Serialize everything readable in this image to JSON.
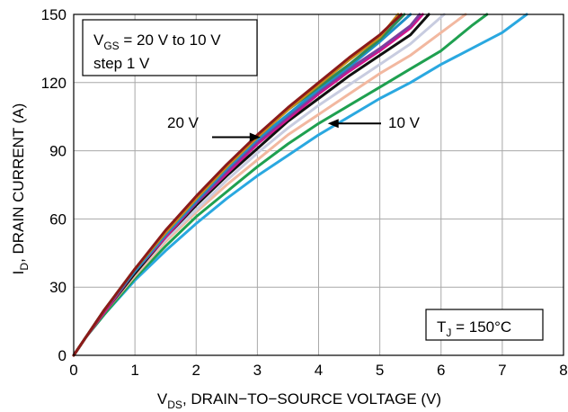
{
  "chart_data": {
    "type": "line",
    "title": "",
    "xlabel": {
      "main": "V",
      "sub": "DS",
      "rest": ", DRAIN−TO−SOURCE VOLTAGE (V)"
    },
    "ylabel": {
      "main": "I",
      "sub": "D",
      "rest": ", DRAIN CURRENT (A)"
    },
    "xlim": [
      0,
      8
    ],
    "ylim": [
      0,
      150
    ],
    "x_ticks": [
      0,
      1,
      2,
      3,
      4,
      5,
      6,
      7,
      8
    ],
    "y_ticks": [
      0,
      30,
      60,
      90,
      120,
      150
    ],
    "grid": true,
    "legend_box": {
      "line1_main": "V",
      "line1_sub": "GS",
      "line1_rest": " = 20 V to 10 V",
      "line2": "step 1 V"
    },
    "temperature_box": {
      "main": "T",
      "sub": "J",
      "rest": " = 150°C"
    },
    "annotations": {
      "left_label": "20 V",
      "right_label": "10 V",
      "left_arrow_tip": [
        3.05,
        96
      ],
      "right_arrow_tip": [
        4.15,
        102
      ]
    },
    "series": [
      {
        "color": "#8B1A1A",
        "x": [
          0,
          0.2,
          0.5,
          1,
          1.5,
          2,
          2.5,
          3,
          3.5,
          4,
          4.5,
          5,
          5.35
        ],
        "y": [
          0,
          8,
          20,
          38,
          55,
          70,
          84,
          97,
          109,
          120,
          131,
          141,
          150
        ]
      },
      {
        "color": "#C88A1A",
        "x": [
          0,
          0.2,
          0.5,
          1,
          1.5,
          2,
          2.5,
          3,
          3.5,
          4,
          4.5,
          5,
          5.3
        ],
        "y": [
          0,
          8,
          20,
          38,
          54,
          69,
          83,
          96,
          108,
          119,
          130,
          140,
          150
        ]
      },
      {
        "color": "#2E8B57",
        "x": [
          0,
          0.2,
          0.5,
          1,
          1.5,
          2,
          2.5,
          3,
          3.5,
          4,
          4.5,
          5,
          5.4
        ],
        "y": [
          0,
          8,
          20,
          38,
          54,
          69,
          83,
          96,
          108,
          118,
          128,
          139,
          150
        ]
      },
      {
        "color": "#1E90C8",
        "x": [
          0,
          0.2,
          0.5,
          1,
          1.5,
          2,
          2.5,
          3,
          3.5,
          4,
          4.5,
          5,
          5.5
        ],
        "y": [
          0,
          8,
          20,
          37,
          53,
          68,
          82,
          95,
          106,
          117,
          127,
          138,
          150
        ]
      },
      {
        "color": "#7B3FA0",
        "x": [
          0,
          0.2,
          0.5,
          1,
          1.5,
          2,
          2.5,
          3,
          3.5,
          4,
          4.5,
          5,
          5.5,
          5.65
        ],
        "y": [
          0,
          8,
          20,
          37,
          53,
          67,
          81,
          94,
          105,
          116,
          126,
          135,
          145,
          150
        ]
      },
      {
        "color": "#D2148C",
        "x": [
          0,
          0.2,
          0.5,
          1,
          1.5,
          2,
          2.5,
          3,
          3.5,
          4,
          4.5,
          5,
          5.5,
          5.7
        ],
        "y": [
          0,
          8,
          19,
          37,
          52,
          67,
          80,
          93,
          104,
          115,
          125,
          134,
          144,
          150
        ]
      },
      {
        "color": "#111111",
        "x": [
          0,
          0.2,
          0.5,
          1,
          1.5,
          2,
          2.5,
          3,
          3.5,
          4,
          4.5,
          5,
          5.5,
          5.8
        ],
        "y": [
          0,
          8,
          19,
          36,
          52,
          66,
          79,
          91,
          103,
          113,
          123,
          132,
          141,
          150
        ]
      },
      {
        "color": "#C8CCE0",
        "x": [
          0,
          0.2,
          0.5,
          1,
          1.5,
          2,
          2.5,
          3,
          3.5,
          4,
          4.5,
          5,
          5.5,
          6.05
        ],
        "y": [
          0,
          8,
          19,
          36,
          51,
          64,
          77,
          89,
          100,
          110,
          119,
          128,
          137,
          150
        ]
      },
      {
        "color": "#F2B8A0",
        "x": [
          0,
          0.2,
          0.5,
          1,
          1.5,
          2,
          2.5,
          3,
          3.5,
          4,
          4.5,
          5,
          5.5,
          6,
          6.4
        ],
        "y": [
          0,
          8,
          19,
          35,
          50,
          63,
          75,
          86,
          97,
          106,
          115,
          124,
          132,
          142,
          150
        ]
      },
      {
        "color": "#1FA050",
        "x": [
          0,
          0.2,
          0.5,
          1,
          1.5,
          2,
          2.5,
          3,
          3.5,
          4,
          4.5,
          5,
          5.5,
          6,
          6.5,
          6.75
        ],
        "y": [
          0,
          8,
          18,
          34,
          48,
          61,
          72,
          83,
          93,
          102,
          110,
          118,
          126,
          134,
          145,
          150
        ]
      },
      {
        "color": "#2AA8E0",
        "x": [
          0,
          0.2,
          0.5,
          1,
          1.5,
          2,
          2.5,
          3,
          3.5,
          4,
          4.5,
          5,
          5.5,
          6,
          6.5,
          7,
          7.4
        ],
        "y": [
          0,
          8,
          18,
          33,
          46,
          58,
          69,
          79,
          88,
          97,
          105,
          113,
          120,
          128,
          135,
          142,
          150
        ]
      }
    ]
  }
}
